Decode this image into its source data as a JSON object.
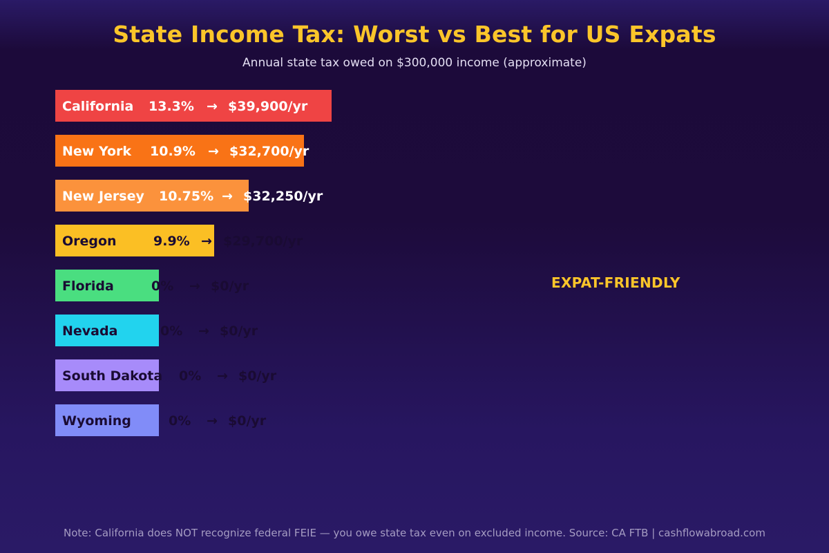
{
  "chart_data": {
    "type": "bar",
    "orientation": "horizontal",
    "title": "State Income Tax: Worst vs Best for US Expats",
    "subtitle": "Annual state tax owed on $300,000 income (approximate)",
    "annotation": "EXPAT-FRIENDLY",
    "footnote": "Note: California does NOT recognize federal FEIE — you owe state tax even on excluded income. Source: CA FTB  |  cashflowabroad.com",
    "categories": [
      "California",
      "New York",
      "New Jersey",
      "Oregon",
      "Florida",
      "Nevada",
      "South Dakota",
      "Wyoming"
    ],
    "rates": [
      "13.3%",
      "10.9%",
      "10.75%",
      "9.9%",
      "0%",
      "0%",
      "0%",
      "0%"
    ],
    "amounts": [
      "$39,900/yr",
      "$32,700/yr",
      "$32,250/yr",
      "$29,700/yr",
      "$0/yr",
      "$0/yr",
      "$0/yr",
      "$0/yr"
    ],
    "values": [
      39900,
      32700,
      32250,
      29700,
      0,
      0,
      0,
      0
    ],
    "display_scale": [
      80,
      72,
      56,
      46,
      30,
      30,
      30,
      30
    ],
    "bar_colors": [
      "#ef4444",
      "#f97316",
      "#fb923c",
      "#fbbf24",
      "#4ade80",
      "#22d3ee",
      "#a78bfa",
      "#818cf8"
    ],
    "label_colors": [
      "#ffffff",
      "#ffffff",
      "#ffffff",
      "#1a0b33",
      "#1a0b33",
      "#1a0b33",
      "#1a0b33",
      "#1a0b33"
    ],
    "colors": {
      "title": "#fbc52a",
      "annotation": "#fbc52a",
      "subtitle": "#e3def2",
      "footnote": "#a59cc2"
    }
  }
}
